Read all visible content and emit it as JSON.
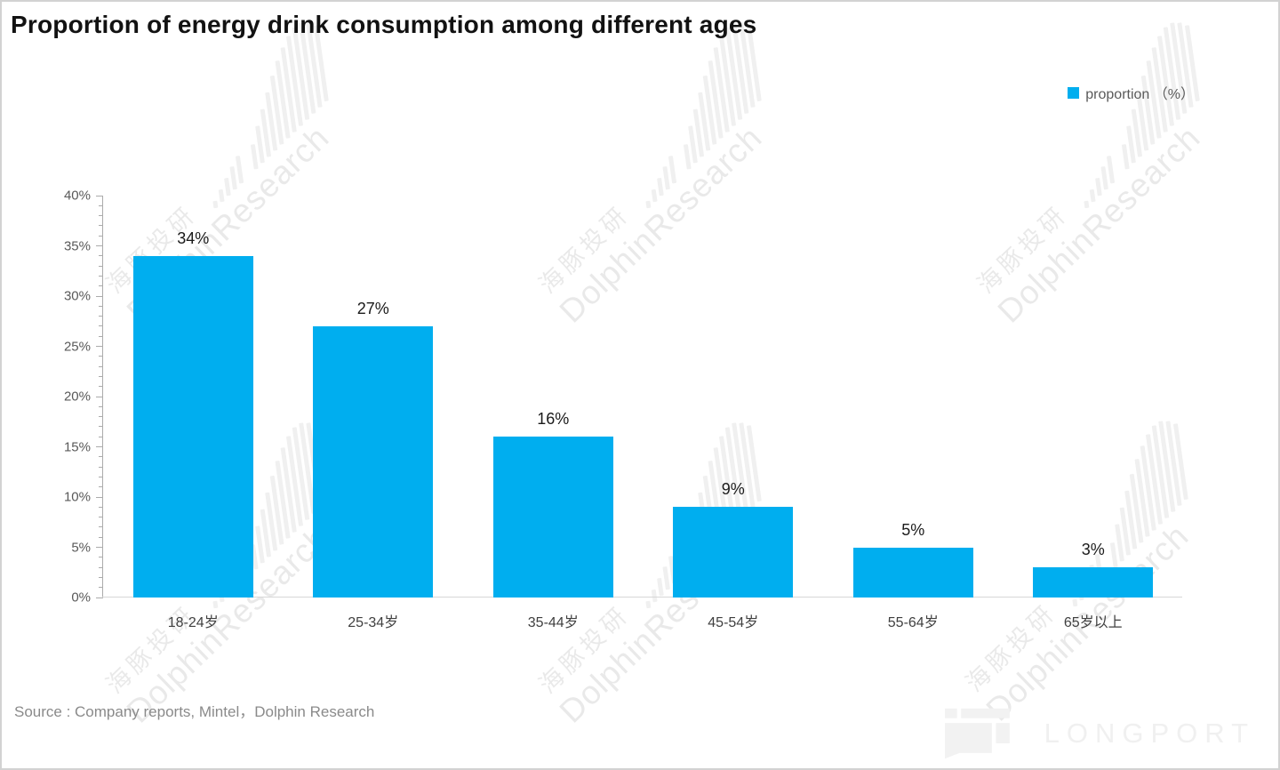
{
  "title": "Proportion of energy drink consumption among different ages",
  "legend": {
    "label": "proportion （%）"
  },
  "chart_data": {
    "type": "bar",
    "title": "Proportion of energy drink consumption among different ages",
    "categories": [
      "18-24岁",
      "25-34岁",
      "35-44岁",
      "45-54岁",
      "55-64岁",
      "65岁以上"
    ],
    "values": [
      34,
      27,
      16,
      9,
      5,
      3
    ],
    "bar_labels": [
      "34%",
      "27%",
      "16%",
      "9%",
      "5%",
      "3%"
    ],
    "series_name": "proportion (%)",
    "xlabel": "",
    "ylabel": "",
    "ylim": [
      0,
      40
    ],
    "ytick_step": 5,
    "minor_tick_step": 1,
    "ytick_labels": [
      "0%",
      "5%",
      "10%",
      "15%",
      "20%",
      "25%",
      "30%",
      "35%",
      "40%"
    ],
    "grid": false,
    "legend_position": "top-right",
    "bar_color": "#00AEEF"
  },
  "source": "Source : Company reports, Mintel，Dolphin Research",
  "watermark": {
    "cn": "海豚投研",
    "en": "DolphinResearch"
  },
  "logo": {
    "text": "LONGPORT",
    "color": "#f2f2f2"
  }
}
